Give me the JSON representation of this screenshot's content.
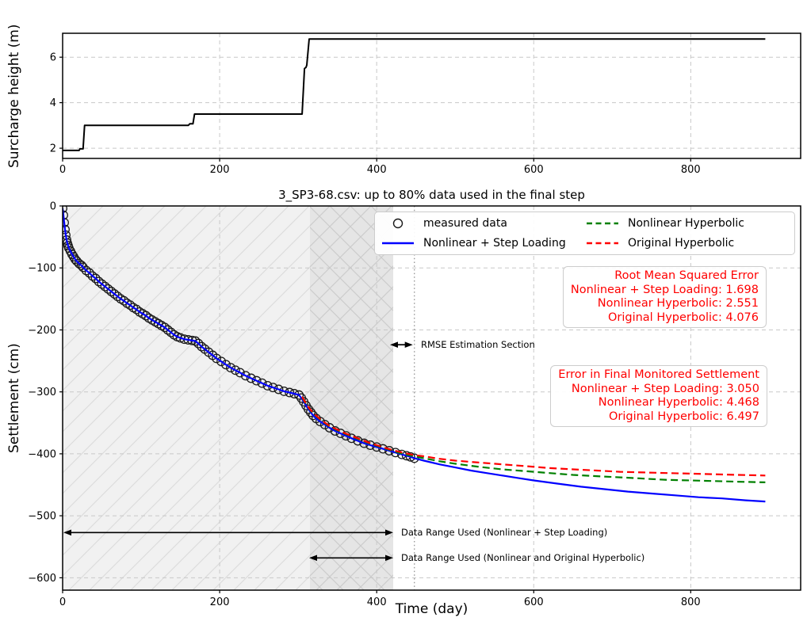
{
  "chart_data": [
    {
      "type": "line",
      "id": "surcharge-plot",
      "ylabel": "Surcharge height (m)",
      "xlim": [
        0,
        940
      ],
      "ylim": [
        1.55,
        7.05
      ],
      "xticks": [
        0,
        200,
        400,
        600,
        800
      ],
      "xtick_labels": [
        "0",
        "200",
        "400",
        "600",
        "800"
      ],
      "yticks": [
        2,
        4,
        6
      ],
      "ytick_labels": [
        "2",
        "4",
        "6"
      ],
      "grid": true,
      "series": [
        {
          "name": "surcharge height",
          "color": "#000000",
          "style": "solid",
          "points": [
            [
              0,
              1.9
            ],
            [
              21,
              1.9
            ],
            [
              22,
              1.97
            ],
            [
              26,
              1.97
            ],
            [
              28,
              3.0
            ],
            [
              160,
              3.0
            ],
            [
              162,
              3.07
            ],
            [
              166,
              3.07
            ],
            [
              168,
              3.5
            ],
            [
              305,
              3.5
            ],
            [
              308,
              5.5
            ],
            [
              310,
              5.55
            ],
            [
              311,
              5.65
            ],
            [
              314,
              6.8
            ],
            [
              895,
              6.8
            ]
          ]
        }
      ]
    },
    {
      "type": "line+scatter",
      "id": "settlement-plot",
      "title": "3_SP3-68.csv: up to 80% data used in the final step",
      "xlabel": "Time (day)",
      "ylabel": "Settlement (cm)",
      "xlim": [
        0,
        940
      ],
      "ylim": [
        -620,
        0
      ],
      "xticks": [
        0,
        200,
        400,
        600,
        800
      ],
      "xtick_labels": [
        "0",
        "200",
        "400",
        "600",
        "800"
      ],
      "yticks": [
        0,
        -100,
        -200,
        -300,
        -400,
        -500,
        -600
      ],
      "ytick_labels": [
        "0",
        "−100",
        "−200",
        "−300",
        "−400",
        "−500",
        "−600"
      ],
      "grid": true,
      "measured": {
        "name": "measured data",
        "marker": "circle",
        "color": "#1a1a1a",
        "points": [
          [
            0,
            -4
          ],
          [
            1,
            -15
          ],
          [
            2,
            -27
          ],
          [
            3,
            -38
          ],
          [
            4,
            -47
          ],
          [
            5,
            -55
          ],
          [
            6,
            -60
          ],
          [
            7,
            -64
          ],
          [
            8,
            -68
          ],
          [
            10,
            -73
          ],
          [
            12,
            -78
          ],
          [
            14,
            -82
          ],
          [
            16,
            -86
          ],
          [
            18,
            -89
          ],
          [
            21,
            -93
          ],
          [
            24,
            -96
          ],
          [
            26,
            -99
          ],
          [
            30,
            -104
          ],
          [
            34,
            -108
          ],
          [
            38,
            -113
          ],
          [
            42,
            -117
          ],
          [
            46,
            -122
          ],
          [
            50,
            -126
          ],
          [
            54,
            -130
          ],
          [
            58,
            -134
          ],
          [
            62,
            -138
          ],
          [
            66,
            -142
          ],
          [
            70,
            -146
          ],
          [
            74,
            -150
          ],
          [
            78,
            -153
          ],
          [
            82,
            -157
          ],
          [
            86,
            -160
          ],
          [
            90,
            -164
          ],
          [
            94,
            -167
          ],
          [
            98,
            -171
          ],
          [
            102,
            -174
          ],
          [
            106,
            -177
          ],
          [
            110,
            -181
          ],
          [
            114,
            -184
          ],
          [
            118,
            -187
          ],
          [
            122,
            -190
          ],
          [
            126,
            -193
          ],
          [
            130,
            -196
          ],
          [
            134,
            -200
          ],
          [
            138,
            -204
          ],
          [
            142,
            -208
          ],
          [
            146,
            -211
          ],
          [
            150,
            -213
          ],
          [
            155,
            -215
          ],
          [
            160,
            -216
          ],
          [
            165,
            -217
          ],
          [
            169,
            -218
          ],
          [
            173,
            -222
          ],
          [
            177,
            -227
          ],
          [
            181,
            -231
          ],
          [
            186,
            -236
          ],
          [
            191,
            -241
          ],
          [
            196,
            -246
          ],
          [
            202,
            -251
          ],
          [
            208,
            -256
          ],
          [
            214,
            -261
          ],
          [
            220,
            -265
          ],
          [
            226,
            -269
          ],
          [
            233,
            -274
          ],
          [
            240,
            -278
          ],
          [
            247,
            -282
          ],
          [
            254,
            -286
          ],
          [
            261,
            -290
          ],
          [
            268,
            -293
          ],
          [
            275,
            -296
          ],
          [
            282,
            -299
          ],
          [
            289,
            -301
          ],
          [
            295,
            -303
          ],
          [
            301,
            -305
          ],
          [
            304,
            -310
          ],
          [
            307,
            -316
          ],
          [
            310,
            -322
          ],
          [
            313,
            -328
          ],
          [
            316,
            -333
          ],
          [
            319,
            -338
          ],
          [
            323,
            -343
          ],
          [
            328,
            -348
          ],
          [
            334,
            -353
          ],
          [
            340,
            -358
          ],
          [
            347,
            -363
          ],
          [
            354,
            -367
          ],
          [
            361,
            -371
          ],
          [
            368,
            -375
          ],
          [
            376,
            -379
          ],
          [
            384,
            -383
          ],
          [
            392,
            -386
          ],
          [
            400,
            -389
          ],
          [
            408,
            -392
          ],
          [
            416,
            -395
          ],
          [
            424,
            -398
          ],
          [
            432,
            -401
          ],
          [
            438,
            -403
          ],
          [
            443,
            -405
          ],
          [
            448,
            -407
          ]
        ]
      },
      "fits": [
        {
          "name": "Nonlinear + Step Loading",
          "color": "#0000ff",
          "style": "solid",
          "follows_measured": true,
          "extension": [
            [
              460,
              -411
            ],
            [
              480,
              -417
            ],
            [
              500,
              -422
            ],
            [
              520,
              -427
            ],
            [
              540,
              -431
            ],
            [
              560,
              -435
            ],
            [
              580,
              -439
            ],
            [
              600,
              -443
            ],
            [
              630,
              -448
            ],
            [
              660,
              -453
            ],
            [
              690,
              -457
            ],
            [
              720,
              -461
            ],
            [
              750,
              -464
            ],
            [
              780,
              -467
            ],
            [
              810,
              -470
            ],
            [
              840,
              -472
            ],
            [
              870,
              -475
            ],
            [
              895,
              -477
            ]
          ]
        },
        {
          "name": "Nonlinear Hyperbolic",
          "color": "#008000",
          "style": "dashed",
          "points": [
            [
              305,
              -309
            ],
            [
              310,
              -320
            ],
            [
              315,
              -329
            ],
            [
              320,
              -336
            ],
            [
              330,
              -347
            ],
            [
              340,
              -356
            ],
            [
              350,
              -362
            ],
            [
              360,
              -368
            ],
            [
              370,
              -373
            ],
            [
              380,
              -378
            ],
            [
              390,
              -383
            ],
            [
              400,
              -387
            ],
            [
              410,
              -391
            ],
            [
              420,
              -395
            ],
            [
              430,
              -399
            ],
            [
              440,
              -402
            ],
            [
              448,
              -404
            ],
            [
              460,
              -407
            ],
            [
              480,
              -412
            ],
            [
              500,
              -416
            ],
            [
              530,
              -421
            ],
            [
              560,
              -425
            ],
            [
              590,
              -428
            ],
            [
              620,
              -431
            ],
            [
              650,
              -434
            ],
            [
              680,
              -436
            ],
            [
              710,
              -438
            ],
            [
              740,
              -440
            ],
            [
              770,
              -442
            ],
            [
              800,
              -443
            ],
            [
              830,
              -444
            ],
            [
              860,
              -445
            ],
            [
              895,
              -446
            ]
          ]
        },
        {
          "name": "Original Hyperbolic",
          "color": "#ff0000",
          "style": "dashed",
          "points": [
            [
              305,
              -308
            ],
            [
              310,
              -319
            ],
            [
              315,
              -328
            ],
            [
              320,
              -335
            ],
            [
              330,
              -346
            ],
            [
              340,
              -355
            ],
            [
              350,
              -361
            ],
            [
              360,
              -367
            ],
            [
              370,
              -372
            ],
            [
              380,
              -377
            ],
            [
              390,
              -382
            ],
            [
              400,
              -386
            ],
            [
              410,
              -390
            ],
            [
              420,
              -394
            ],
            [
              430,
              -397
            ],
            [
              440,
              -400
            ],
            [
              448,
              -402
            ],
            [
              460,
              -404
            ],
            [
              480,
              -408
            ],
            [
              500,
              -411
            ],
            [
              530,
              -414
            ],
            [
              560,
              -417
            ],
            [
              590,
              -420
            ],
            [
              620,
              -423
            ],
            [
              650,
              -425
            ],
            [
              680,
              -427
            ],
            [
              710,
              -429
            ],
            [
              740,
              -430
            ],
            [
              770,
              -431
            ],
            [
              800,
              -432
            ],
            [
              830,
              -433
            ],
            [
              860,
              -434
            ],
            [
              895,
              -435
            ]
          ]
        }
      ],
      "regions": [
        {
          "x1": 0,
          "x2": 315,
          "hatch": "/",
          "fill": "#f1f1f1",
          "line": "#dcdcdc"
        },
        {
          "x1": 315,
          "x2": 421,
          "hatch": "x",
          "fill": "#e5e5e5",
          "line": "#cccccc"
        }
      ],
      "measured_data_end_x": 448,
      "legend": {
        "items": [
          {
            "label": "measured data",
            "marker": "circle",
            "color": "#1a1a1a"
          },
          {
            "label": "Nonlinear + Step Loading",
            "marker": "line",
            "color": "#0000ff"
          },
          {
            "label": "Nonlinear Hyperbolic",
            "marker": "dash",
            "color": "#008000"
          },
          {
            "label": "Original Hyperbolic",
            "marker": "dash",
            "color": "#ff0000"
          }
        ]
      },
      "rmse_box": {
        "lines": [
          "Root Mean Squared Error",
          "Nonlinear + Step Loading: 1.698",
          "Nonlinear Hyperbolic: 2.551",
          "Original Hyperbolic: 4.076"
        ]
      },
      "final_error_box": {
        "lines": [
          "Error in Final Monitored Settlement",
          "Nonlinear + Step Loading: 3.050",
          "Nonlinear Hyperbolic: 4.468",
          "Original Hyperbolic: 6.497"
        ]
      },
      "annotations": {
        "rmse_section": {
          "label": "RMSE Estimation Section",
          "x1": 417,
          "x2": 446,
          "y": -224
        },
        "range1": {
          "label": "Data Range Used (Nonlinear + Step Loading)",
          "x1": 1,
          "x2": 421,
          "y": -527
        },
        "range2": {
          "label": "Data Range Used (Nonlinear and Original Hyperbolic)",
          "x1": 314,
          "x2": 421,
          "y": -568
        }
      },
      "text_color": "#ff0000"
    }
  ]
}
